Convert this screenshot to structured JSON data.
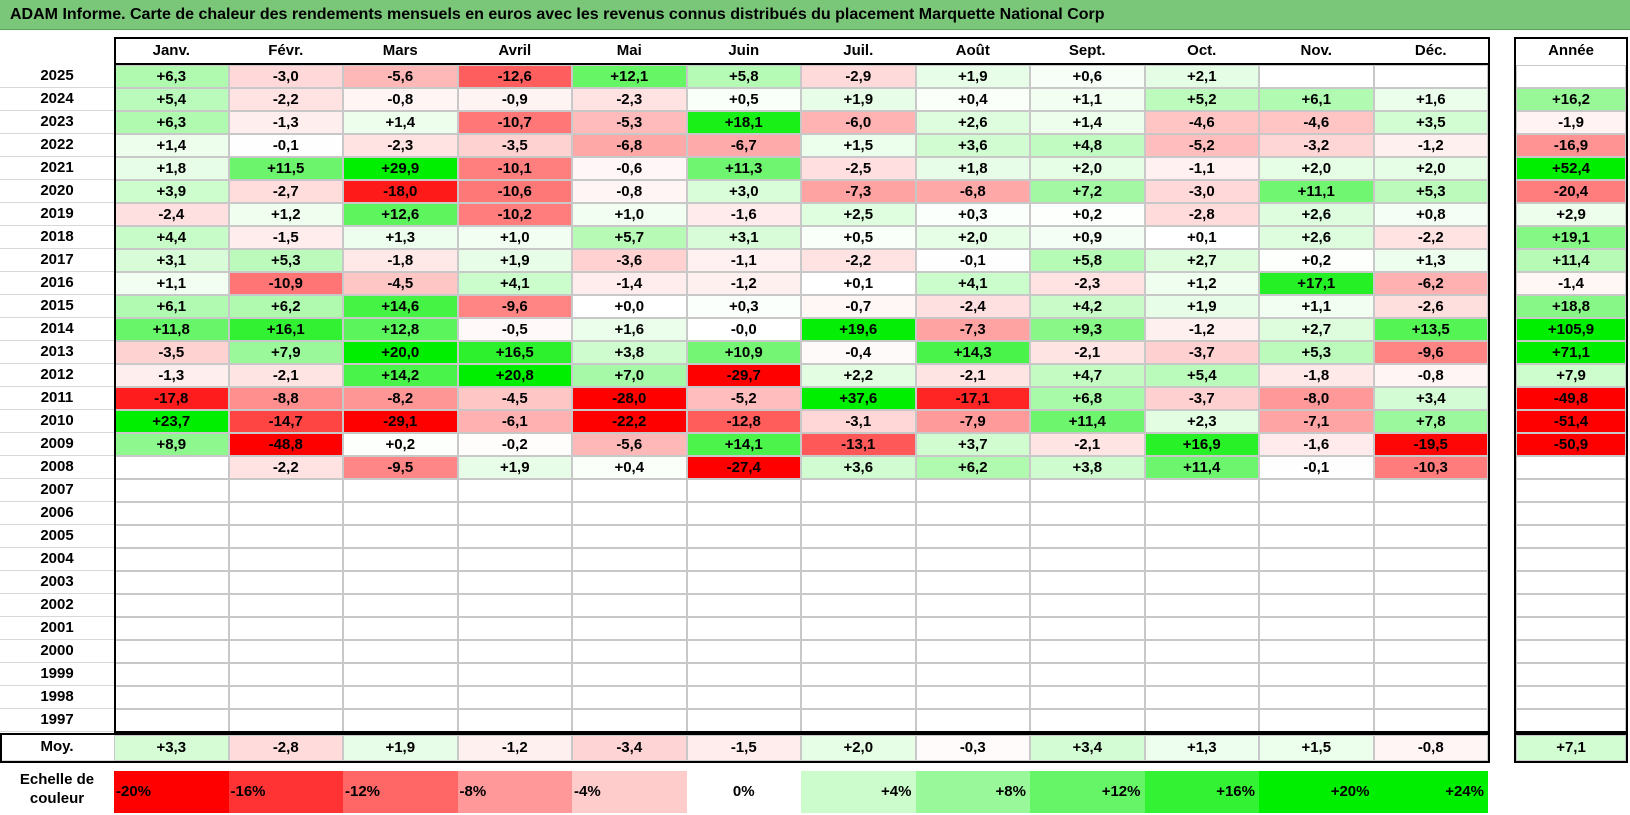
{
  "title": "ADAM Informe. Carte de chaleur des rendements mensuels en euros avec les revenus connus distribués du placement Marquette National Corp",
  "chart_data": {
    "type": "heatmap",
    "title": "ADAM Informe. Carte de chaleur des rendements mensuels en euros avec les revenus connus distribués du placement Marquette National Corp",
    "columns": [
      "Janv.",
      "Févr.",
      "Mars",
      "Avril",
      "Mai",
      "Juin",
      "Juil.",
      "Août",
      "Sept.",
      "Oct.",
      "Nov.",
      "Déc."
    ],
    "year_column": "Année",
    "rows": [
      {
        "year": "2025",
        "values": [
          "+6,3",
          "-3,0",
          "-5,6",
          "-12,6",
          "+12,1",
          "+5,8",
          "-2,9",
          "+1,9",
          "+0,6",
          "+2,1",
          "",
          ""
        ],
        "annual": ""
      },
      {
        "year": "2024",
        "values": [
          "+5,4",
          "-2,2",
          "-0,8",
          "-0,9",
          "-2,3",
          "+0,5",
          "+1,9",
          "+0,4",
          "+1,1",
          "+5,2",
          "+6,1",
          "+1,6"
        ],
        "annual": "+16,2"
      },
      {
        "year": "2023",
        "values": [
          "+6,3",
          "-1,3",
          "+1,4",
          "-10,7",
          "-5,3",
          "+18,1",
          "-6,0",
          "+2,6",
          "+1,4",
          "-4,6",
          "-4,6",
          "+3,5"
        ],
        "annual": "-1,9"
      },
      {
        "year": "2022",
        "values": [
          "+1,4",
          "-0,1",
          "-2,3",
          "-3,5",
          "-6,8",
          "-6,7",
          "+1,5",
          "+3,6",
          "+4,8",
          "-5,2",
          "-3,2",
          "-1,2"
        ],
        "annual": "-16,9"
      },
      {
        "year": "2021",
        "values": [
          "+1,8",
          "+11,5",
          "+29,9",
          "-10,1",
          "-0,6",
          "+11,3",
          "-2,5",
          "+1,8",
          "+2,0",
          "-1,1",
          "+2,0",
          "+2,0"
        ],
        "annual": "+52,4"
      },
      {
        "year": "2020",
        "values": [
          "+3,9",
          "-2,7",
          "-18,0",
          "-10,6",
          "-0,8",
          "+3,0",
          "-7,3",
          "-6,8",
          "+7,2",
          "-3,0",
          "+11,1",
          "+5,3"
        ],
        "annual": "-20,4"
      },
      {
        "year": "2019",
        "values": [
          "-2,4",
          "+1,2",
          "+12,6",
          "-10,2",
          "+1,0",
          "-1,6",
          "+2,5",
          "+0,3",
          "+0,2",
          "-2,8",
          "+2,6",
          "+0,8"
        ],
        "annual": "+2,9"
      },
      {
        "year": "2018",
        "values": [
          "+4,4",
          "-1,5",
          "+1,3",
          "+1,0",
          "+5,7",
          "+3,1",
          "+0,5",
          "+2,0",
          "+0,9",
          "+0,1",
          "+2,6",
          "-2,2"
        ],
        "annual": "+19,1"
      },
      {
        "year": "2017",
        "values": [
          "+3,1",
          "+5,3",
          "-1,8",
          "+1,9",
          "-3,6",
          "-1,1",
          "-2,2",
          "-0,1",
          "+5,8",
          "+2,7",
          "+0,2",
          "+1,3"
        ],
        "annual": "+11,4"
      },
      {
        "year": "2016",
        "values": [
          "+1,1",
          "-10,9",
          "-4,5",
          "+4,1",
          "-1,4",
          "-1,2",
          "+0,1",
          "+4,1",
          "-2,3",
          "+1,2",
          "+17,1",
          "-6,2"
        ],
        "annual": "-1,4"
      },
      {
        "year": "2015",
        "values": [
          "+6,1",
          "+6,2",
          "+14,6",
          "-9,6",
          "+0,0",
          "+0,3",
          "-0,7",
          "-2,4",
          "+4,2",
          "+1,9",
          "+1,1",
          "-2,6"
        ],
        "annual": "+18,8"
      },
      {
        "year": "2014",
        "values": [
          "+11,8",
          "+16,1",
          "+12,8",
          "-0,5",
          "+1,6",
          "-0,0",
          "+19,6",
          "-7,3",
          "+9,3",
          "-1,2",
          "+2,7",
          "+13,5"
        ],
        "annual": "+105,9"
      },
      {
        "year": "2013",
        "values": [
          "-3,5",
          "+7,9",
          "+20,0",
          "+16,5",
          "+3,8",
          "+10,9",
          "-0,4",
          "+14,3",
          "-2,1",
          "-3,7",
          "+5,3",
          "-9,6"
        ],
        "annual": "+71,1"
      },
      {
        "year": "2012",
        "values": [
          "-1,3",
          "-2,1",
          "+14,2",
          "+20,8",
          "+7,0",
          "-29,7",
          "+2,2",
          "-2,1",
          "+4,7",
          "+5,4",
          "-1,8",
          "-0,8"
        ],
        "annual": "+7,9"
      },
      {
        "year": "2011",
        "values": [
          "-17,8",
          "-8,8",
          "-8,2",
          "-4,5",
          "-28,0",
          "-5,2",
          "+37,6",
          "-17,1",
          "+6,8",
          "-3,7",
          "-8,0",
          "+3,4"
        ],
        "annual": "-49,8"
      },
      {
        "year": "2010",
        "values": [
          "+23,7",
          "-14,7",
          "-29,1",
          "-6,1",
          "-22,2",
          "-12,8",
          "-3,1",
          "-7,9",
          "+11,4",
          "+2,3",
          "-7,1",
          "+7,8"
        ],
        "annual": "-51,4"
      },
      {
        "year": "2009",
        "values": [
          "+8,9",
          "-48,8",
          "+0,2",
          "-0,2",
          "-5,6",
          "+14,1",
          "-13,1",
          "+3,7",
          "-2,1",
          "+16,9",
          "-1,6",
          "-19,5"
        ],
        "annual": "-50,9"
      },
      {
        "year": "2008",
        "values": [
          "",
          "-2,2",
          "-9,5",
          "+1,9",
          "+0,4",
          "-27,4",
          "+3,6",
          "+6,2",
          "+3,8",
          "+11,4",
          "-0,1",
          "-10,3"
        ],
        "annual": ""
      },
      {
        "year": "2007",
        "values": [
          "",
          "",
          "",
          "",
          "",
          "",
          "",
          "",
          "",
          "",
          "",
          ""
        ],
        "annual": ""
      },
      {
        "year": "2006",
        "values": [
          "",
          "",
          "",
          "",
          "",
          "",
          "",
          "",
          "",
          "",
          "",
          ""
        ],
        "annual": ""
      },
      {
        "year": "2005",
        "values": [
          "",
          "",
          "",
          "",
          "",
          "",
          "",
          "",
          "",
          "",
          "",
          ""
        ],
        "annual": ""
      },
      {
        "year": "2004",
        "values": [
          "",
          "",
          "",
          "",
          "",
          "",
          "",
          "",
          "",
          "",
          "",
          ""
        ],
        "annual": ""
      },
      {
        "year": "2003",
        "values": [
          "",
          "",
          "",
          "",
          "",
          "",
          "",
          "",
          "",
          "",
          "",
          ""
        ],
        "annual": ""
      },
      {
        "year": "2002",
        "values": [
          "",
          "",
          "",
          "",
          "",
          "",
          "",
          "",
          "",
          "",
          "",
          ""
        ],
        "annual": ""
      },
      {
        "year": "2001",
        "values": [
          "",
          "",
          "",
          "",
          "",
          "",
          "",
          "",
          "",
          "",
          "",
          ""
        ],
        "annual": ""
      },
      {
        "year": "2000",
        "values": [
          "",
          "",
          "",
          "",
          "",
          "",
          "",
          "",
          "",
          "",
          "",
          ""
        ],
        "annual": ""
      },
      {
        "year": "1999",
        "values": [
          "",
          "",
          "",
          "",
          "",
          "",
          "",
          "",
          "",
          "",
          "",
          ""
        ],
        "annual": ""
      },
      {
        "year": "1998",
        "values": [
          "",
          "",
          "",
          "",
          "",
          "",
          "",
          "",
          "",
          "",
          "",
          ""
        ],
        "annual": ""
      },
      {
        "year": "1997",
        "values": [
          "",
          "",
          "",
          "",
          "",
          "",
          "",
          "",
          "",
          "",
          "",
          ""
        ],
        "annual": ""
      }
    ],
    "average": {
      "label": "Moy.",
      "values": [
        "+3,3",
        "-2,8",
        "+1,9",
        "-1,2",
        "-3,4",
        "-1,5",
        "+2,0",
        "-0,3",
        "+3,4",
        "+1,3",
        "+1,5",
        "-0,8"
      ],
      "annual": "+7,1"
    },
    "color_scale": {
      "label": "Echelle de couleur",
      "steps": [
        "-20%",
        "-16%",
        "-12%",
        "-8%",
        "-4%",
        "0%",
        "+4%",
        "+8%",
        "+12%",
        "+16%",
        "+20%",
        "+24%"
      ],
      "negative_color": "#ff0000",
      "positive_color": "#00ee00",
      "neutral_color": "#ffffff"
    }
  }
}
